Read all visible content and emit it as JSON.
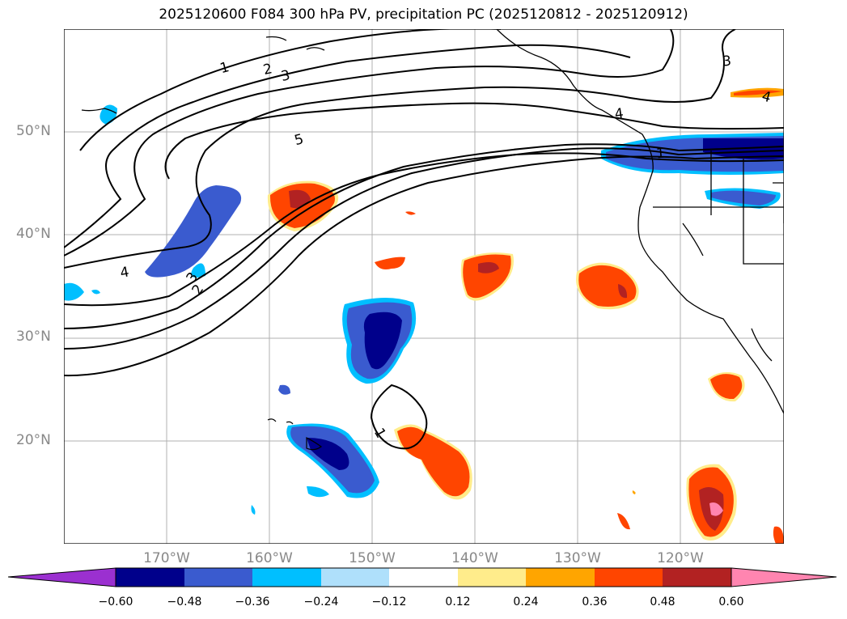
{
  "title": "2025120600 F084 300 hPa PV, precipitation PC (2025120812 - 2025120912)",
  "lat_labels": [
    "50°N",
    "40°N",
    "30°N",
    "20°N"
  ],
  "lon_labels": [
    "170°W",
    "160°W",
    "150°W",
    "140°W",
    "130°W",
    "120°W"
  ],
  "contour_labels": [
    "1",
    "2",
    "3",
    "5",
    "4",
    "3",
    "2",
    "3",
    "4",
    "1",
    "4",
    "1"
  ],
  "colorbar": {
    "ticks": [
      "−0.60",
      "−0.48",
      "−0.36",
      "−0.24",
      "−0.12",
      "0.12",
      "0.24",
      "0.36",
      "0.48",
      "0.60"
    ],
    "colors": [
      "#9b30d0",
      "#00008b",
      "#3a5bcf",
      "#00bfff",
      "#afe0fb",
      "#ffffff",
      "#ffec8b",
      "#ffa500",
      "#ff4500",
      "#b22222",
      "#ff85b0",
      "#ff85b0"
    ]
  }
}
